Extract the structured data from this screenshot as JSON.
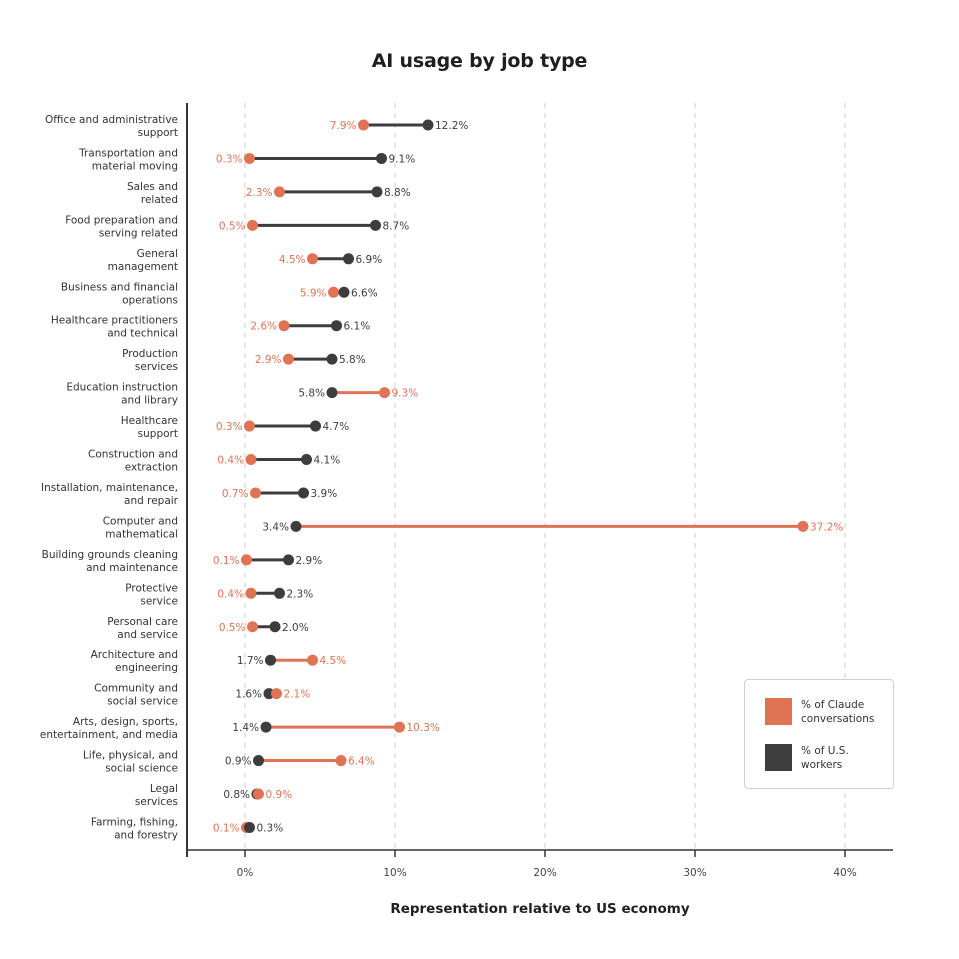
{
  "chart_data": {
    "type": "dumbbell",
    "title": "AI usage by job type",
    "xlabel": "Representation relative to US economy",
    "ylabel": "",
    "xlim": [
      -3.9,
      43
    ],
    "xticks": [
      0,
      10,
      20,
      30,
      40
    ],
    "xtick_labels": [
      "0%",
      "10%",
      "20%",
      "30%",
      "40%"
    ],
    "grid": "vertical dashed at x ticks",
    "legend_position": "bottom-right",
    "colors": {
      "claude": "#e07354",
      "workers": "#3d3d3d",
      "grid": "#cccccc",
      "axis": "#333333"
    },
    "series": [
      {
        "name": "% of Claude conversations",
        "key": "claude",
        "color": "#e07354"
      },
      {
        "name": "% of U.S. workers",
        "key": "workers",
        "color": "#3d3d3d"
      }
    ],
    "categories": [
      {
        "label": [
          "Office and administrative",
          "support"
        ],
        "claude": 7.9,
        "workers": 12.2,
        "claude_label": "7.9%",
        "workers_label": "12.2%"
      },
      {
        "label": [
          "Transportation and",
          "material moving"
        ],
        "claude": 0.3,
        "workers": 9.1,
        "claude_label": "0.3%",
        "workers_label": "9.1%"
      },
      {
        "label": [
          "Sales and",
          "related"
        ],
        "claude": 2.3,
        "workers": 8.8,
        "claude_label": "2.3%",
        "workers_label": "8.8%"
      },
      {
        "label": [
          "Food preparation and",
          "serving related"
        ],
        "claude": 0.5,
        "workers": 8.7,
        "claude_label": "0.5%",
        "workers_label": "8.7%"
      },
      {
        "label": [
          "General",
          "management"
        ],
        "claude": 4.5,
        "workers": 6.9,
        "claude_label": "4.5%",
        "workers_label": "6.9%"
      },
      {
        "label": [
          "Business and financial",
          "operations"
        ],
        "claude": 5.9,
        "workers": 6.6,
        "claude_label": "5.9%",
        "workers_label": "6.6%"
      },
      {
        "label": [
          "Healthcare practitioners",
          "and technical"
        ],
        "claude": 2.6,
        "workers": 6.1,
        "claude_label": "2.6%",
        "workers_label": "6.1%"
      },
      {
        "label": [
          "Production",
          "services"
        ],
        "claude": 2.9,
        "workers": 5.8,
        "claude_label": "2.9%",
        "workers_label": "5.8%"
      },
      {
        "label": [
          "Education instruction",
          "and library"
        ],
        "claude": 9.3,
        "workers": 5.8,
        "claude_label": "9.3%",
        "workers_label": "5.8%"
      },
      {
        "label": [
          "Healthcare",
          "support"
        ],
        "claude": 0.3,
        "workers": 4.7,
        "claude_label": "0.3%",
        "workers_label": "4.7%"
      },
      {
        "label": [
          "Construction and",
          "extraction"
        ],
        "claude": 0.4,
        "workers": 4.1,
        "claude_label": "0.4%",
        "workers_label": "4.1%"
      },
      {
        "label": [
          "Installation, maintenance,",
          "and repair"
        ],
        "claude": 0.7,
        "workers": 3.9,
        "claude_label": "0.7%",
        "workers_label": "3.9%"
      },
      {
        "label": [
          "Computer and",
          "mathematical"
        ],
        "claude": 37.2,
        "workers": 3.4,
        "claude_label": "37.2%",
        "workers_label": "3.4%"
      },
      {
        "label": [
          "Building grounds cleaning",
          "and maintenance"
        ],
        "claude": 0.1,
        "workers": 2.9,
        "claude_label": "0.1%",
        "workers_label": "2.9%"
      },
      {
        "label": [
          "Protective",
          "service"
        ],
        "claude": 0.4,
        "workers": 2.3,
        "claude_label": "0.4%",
        "workers_label": "2.3%"
      },
      {
        "label": [
          "Personal care",
          "and service"
        ],
        "claude": 0.5,
        "workers": 2.0,
        "claude_label": "0.5%",
        "workers_label": "2.0%"
      },
      {
        "label": [
          "Architecture and",
          "engineering"
        ],
        "claude": 4.5,
        "workers": 1.7,
        "claude_label": "4.5%",
        "workers_label": "1.7%"
      },
      {
        "label": [
          "Community and",
          "social service"
        ],
        "claude": 2.1,
        "workers": 1.6,
        "claude_label": "2.1%",
        "workers_label": "1.6%"
      },
      {
        "label": [
          "Arts, design, sports,",
          "entertainment, and media"
        ],
        "claude": 10.3,
        "workers": 1.4,
        "claude_label": "10.3%",
        "workers_label": "1.4%"
      },
      {
        "label": [
          "Life, physical, and",
          "social science"
        ],
        "claude": 6.4,
        "workers": 0.9,
        "claude_label": "6.4%",
        "workers_label": "0.9%"
      },
      {
        "label": [
          "Legal",
          "services"
        ],
        "claude": 0.9,
        "workers": 0.8,
        "claude_label": "0.9%",
        "workers_label": "0.8%"
      },
      {
        "label": [
          "Farming, fishing,",
          "and forestry"
        ],
        "claude": 0.1,
        "workers": 0.3,
        "claude_label": "0.1%",
        "workers_label": "0.3%"
      }
    ]
  },
  "legend": {
    "claude_label": "% of Claude conversations",
    "workers_label": "% of U.S. workers"
  }
}
